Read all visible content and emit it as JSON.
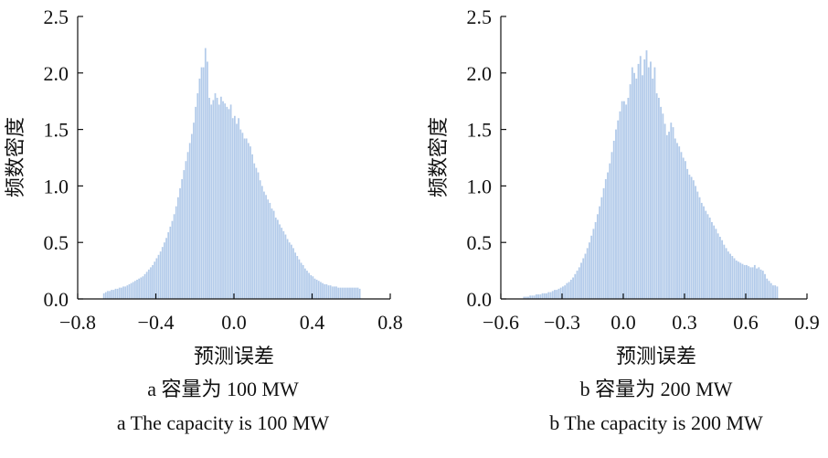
{
  "chart_data": [
    {
      "type": "bar",
      "subtype": "histogram",
      "bar_color": "#b3cbea",
      "xlabel": "预测误差",
      "ylabel": "频数密度",
      "xlim": [
        -0.8,
        0.8
      ],
      "ylim": [
        0,
        2.5
      ],
      "xticks": [
        -0.8,
        -0.4,
        0.0,
        0.4,
        0.8
      ],
      "xtick_labels": [
        "−0.8",
        "−0.4",
        "0.0",
        "0.4",
        "0.8"
      ],
      "yticks": [
        0,
        0.5,
        1.0,
        1.5,
        2.0,
        2.5
      ],
      "ytick_labels": [
        "0.0",
        "0.5",
        "1.0",
        "1.5",
        "2.0",
        "2.5"
      ],
      "caption_cn": "a 容量为 100 MW",
      "caption_en": "a The capacity is 100 MW",
      "bin_width": 0.01,
      "x": [
        -0.67,
        -0.66,
        -0.65,
        -0.64,
        -0.63,
        -0.62,
        -0.61,
        -0.6,
        -0.59,
        -0.58,
        -0.57,
        -0.56,
        -0.55,
        -0.54,
        -0.53,
        -0.52,
        -0.51,
        -0.5,
        -0.49,
        -0.48,
        -0.47,
        -0.46,
        -0.45,
        -0.44,
        -0.43,
        -0.42,
        -0.41,
        -0.4,
        -0.39,
        -0.38,
        -0.37,
        -0.36,
        -0.35,
        -0.34,
        -0.33,
        -0.32,
        -0.31,
        -0.3,
        -0.29,
        -0.28,
        -0.27,
        -0.26,
        -0.25,
        -0.24,
        -0.23,
        -0.22,
        -0.21,
        -0.2,
        -0.19,
        -0.18,
        -0.17,
        -0.16,
        -0.15,
        -0.14,
        -0.13,
        -0.12,
        -0.11,
        -0.1,
        -0.09,
        -0.08,
        -0.07,
        -0.06,
        -0.05,
        -0.04,
        -0.03,
        -0.02,
        -0.01,
        0.0,
        0.01,
        0.02,
        0.03,
        0.04,
        0.05,
        0.06,
        0.07,
        0.08,
        0.09,
        0.1,
        0.11,
        0.12,
        0.13,
        0.14,
        0.15,
        0.16,
        0.17,
        0.18,
        0.19,
        0.2,
        0.21,
        0.22,
        0.23,
        0.24,
        0.25,
        0.26,
        0.27,
        0.28,
        0.29,
        0.3,
        0.31,
        0.32,
        0.33,
        0.34,
        0.35,
        0.36,
        0.37,
        0.38,
        0.39,
        0.4,
        0.41,
        0.42,
        0.43,
        0.44,
        0.45,
        0.46,
        0.47,
        0.48,
        0.49,
        0.5,
        0.51,
        0.52,
        0.53,
        0.54,
        0.55,
        0.56,
        0.57,
        0.58,
        0.59,
        0.6,
        0.61,
        0.62,
        0.63,
        0.64
      ],
      "values": [
        0.05,
        0.06,
        0.07,
        0.07,
        0.08,
        0.08,
        0.09,
        0.09,
        0.1,
        0.1,
        0.11,
        0.11,
        0.12,
        0.13,
        0.14,
        0.15,
        0.16,
        0.17,
        0.18,
        0.19,
        0.2,
        0.22,
        0.24,
        0.26,
        0.28,
        0.3,
        0.33,
        0.36,
        0.39,
        0.42,
        0.46,
        0.5,
        0.54,
        0.59,
        0.64,
        0.69,
        0.75,
        0.82,
        0.9,
        0.98,
        1.06,
        1.14,
        1.22,
        1.3,
        1.38,
        1.46,
        1.56,
        1.7,
        1.82,
        1.95,
        2.05,
        2.05,
        2.22,
        2.1,
        1.78,
        1.72,
        1.76,
        1.82,
        1.78,
        1.72,
        1.79,
        1.75,
        1.73,
        1.7,
        1.68,
        1.72,
        1.6,
        1.62,
        1.55,
        1.6,
        1.5,
        1.47,
        1.42,
        1.42,
        1.38,
        1.35,
        1.28,
        1.2,
        1.16,
        1.12,
        1.05,
        1.0,
        0.95,
        0.92,
        0.88,
        0.85,
        0.8,
        0.78,
        0.72,
        0.7,
        0.66,
        0.63,
        0.6,
        0.57,
        0.53,
        0.5,
        0.48,
        0.45,
        0.41,
        0.38,
        0.35,
        0.32,
        0.3,
        0.27,
        0.25,
        0.23,
        0.21,
        0.2,
        0.18,
        0.17,
        0.16,
        0.15,
        0.14,
        0.13,
        0.13,
        0.12,
        0.12,
        0.11,
        0.11,
        0.11,
        0.1,
        0.1,
        0.1,
        0.1,
        0.1,
        0.1,
        0.1,
        0.1,
        0.1,
        0.1,
        0.1,
        0.09
      ]
    },
    {
      "type": "bar",
      "subtype": "histogram",
      "bar_color": "#b3cbea",
      "xlabel": "预测误差",
      "ylabel": "频数密度",
      "xlim": [
        -0.6,
        0.9
      ],
      "ylim": [
        0,
        2.5
      ],
      "xticks": [
        -0.6,
        -0.3,
        0.0,
        0.3,
        0.6,
        0.9
      ],
      "xtick_labels": [
        "−0.6",
        "−0.3",
        "0.0",
        "0.3",
        "0.6",
        "0.9"
      ],
      "yticks": [
        0,
        0.5,
        1.0,
        1.5,
        2.0,
        2.5
      ],
      "ytick_labels": [
        "0.0",
        "0.5",
        "1.0",
        "1.5",
        "2.0",
        "2.5"
      ],
      "caption_cn": "b 容量为 200 MW",
      "caption_en": "b The capacity is 200 MW",
      "bin_width": 0.01,
      "x": [
        -0.49,
        -0.48,
        -0.47,
        -0.46,
        -0.45,
        -0.44,
        -0.43,
        -0.42,
        -0.41,
        -0.4,
        -0.39,
        -0.38,
        -0.37,
        -0.36,
        -0.35,
        -0.34,
        -0.33,
        -0.32,
        -0.31,
        -0.3,
        -0.29,
        -0.28,
        -0.27,
        -0.26,
        -0.25,
        -0.24,
        -0.23,
        -0.22,
        -0.21,
        -0.2,
        -0.19,
        -0.18,
        -0.17,
        -0.16,
        -0.15,
        -0.14,
        -0.13,
        -0.12,
        -0.11,
        -0.1,
        -0.09,
        -0.08,
        -0.07,
        -0.06,
        -0.05,
        -0.04,
        -0.03,
        -0.02,
        -0.01,
        0.0,
        0.01,
        0.02,
        0.03,
        0.04,
        0.05,
        0.06,
        0.07,
        0.08,
        0.09,
        0.1,
        0.11,
        0.12,
        0.13,
        0.14,
        0.15,
        0.16,
        0.17,
        0.18,
        0.19,
        0.2,
        0.21,
        0.22,
        0.23,
        0.24,
        0.25,
        0.26,
        0.27,
        0.28,
        0.29,
        0.3,
        0.31,
        0.32,
        0.33,
        0.34,
        0.35,
        0.36,
        0.37,
        0.38,
        0.39,
        0.4,
        0.41,
        0.42,
        0.43,
        0.44,
        0.45,
        0.46,
        0.47,
        0.48,
        0.49,
        0.5,
        0.51,
        0.52,
        0.53,
        0.54,
        0.55,
        0.56,
        0.57,
        0.58,
        0.59,
        0.6,
        0.61,
        0.62,
        0.63,
        0.64,
        0.65,
        0.66,
        0.67,
        0.68,
        0.69,
        0.7,
        0.71,
        0.72,
        0.73,
        0.74,
        0.75
      ],
      "values": [
        0.02,
        0.02,
        0.02,
        0.03,
        0.03,
        0.03,
        0.04,
        0.04,
        0.04,
        0.05,
        0.05,
        0.05,
        0.06,
        0.06,
        0.07,
        0.08,
        0.08,
        0.09,
        0.1,
        0.11,
        0.12,
        0.14,
        0.15,
        0.17,
        0.19,
        0.22,
        0.25,
        0.28,
        0.32,
        0.36,
        0.4,
        0.45,
        0.5,
        0.56,
        0.62,
        0.68,
        0.75,
        0.82,
        0.9,
        0.98,
        1.06,
        1.12,
        1.2,
        1.3,
        1.4,
        1.5,
        1.58,
        1.66,
        1.75,
        1.75,
        1.72,
        1.78,
        1.9,
        2.05,
        2.0,
        1.95,
        2.08,
        2.15,
        1.98,
        2.12,
        2.2,
        2.05,
        2.1,
        1.95,
        2.05,
        1.82,
        1.78,
        1.7,
        1.64,
        1.55,
        1.45,
        1.48,
        1.56,
        1.52,
        1.42,
        1.38,
        1.35,
        1.3,
        1.25,
        1.22,
        1.15,
        1.1,
        1.08,
        1.05,
        1.0,
        0.95,
        0.9,
        0.85,
        0.82,
        0.78,
        0.75,
        0.72,
        0.68,
        0.65,
        0.62,
        0.58,
        0.55,
        0.52,
        0.48,
        0.45,
        0.42,
        0.4,
        0.38,
        0.36,
        0.34,
        0.33,
        0.32,
        0.31,
        0.3,
        0.3,
        0.29,
        0.28,
        0.28,
        0.3,
        0.27,
        0.28,
        0.26,
        0.25,
        0.22,
        0.18,
        0.16,
        0.14,
        0.12,
        0.12,
        0.11
      ]
    }
  ]
}
